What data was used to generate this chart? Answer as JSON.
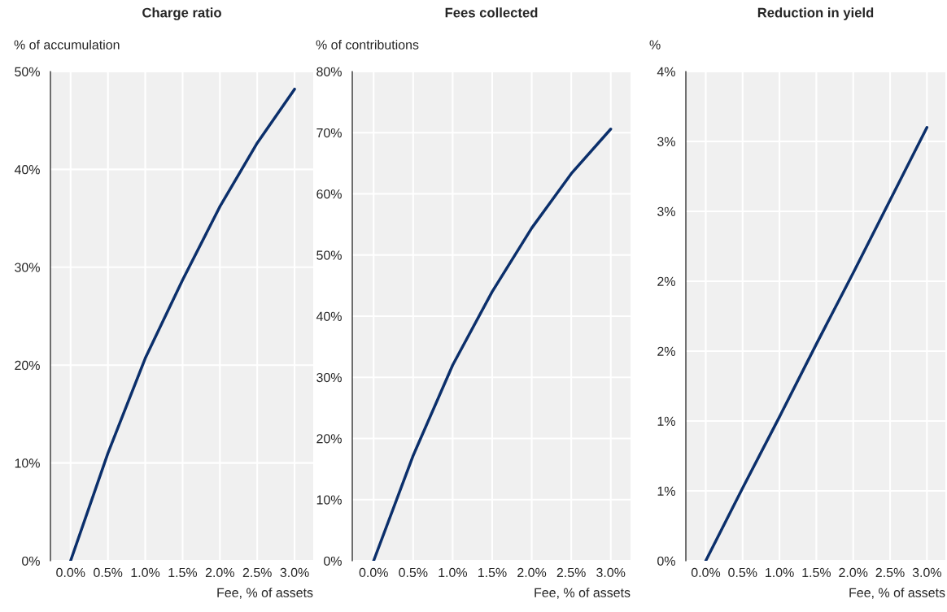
{
  "chart_data": [
    {
      "type": "line",
      "title": "Charge ratio",
      "ylabel": "% of accumulation",
      "xlabel": "Fee, % of assets",
      "x": [
        0,
        0.5,
        1.0,
        1.5,
        2.0,
        2.5,
        3.0
      ],
      "series": [
        {
          "color": "#0b2f6b",
          "values": [
            0,
            11.0,
            20.7,
            28.7,
            36.2,
            42.7,
            48.2
          ]
        }
      ],
      "xlim": [
        -0.27,
        3.25
      ],
      "xticks": [
        {
          "value": 0,
          "label": "0.0%"
        },
        {
          "value": 0.5,
          "label": "0.5%"
        },
        {
          "value": 1.0,
          "label": "1.0%"
        },
        {
          "value": 1.5,
          "label": "1.5%"
        },
        {
          "value": 2.0,
          "label": "2.0%"
        },
        {
          "value": 2.5,
          "label": "2.5%"
        },
        {
          "value": 3.0,
          "label": "3.0%"
        }
      ],
      "ylim": [
        0,
        50
      ],
      "yticks": [
        {
          "value": 0,
          "label": "0%"
        },
        {
          "value": 10,
          "label": "10%"
        },
        {
          "value": 20,
          "label": "20%"
        },
        {
          "value": 30,
          "label": "30%"
        },
        {
          "value": 40,
          "label": "40%"
        },
        {
          "value": 50,
          "label": "50%"
        }
      ],
      "grid": true,
      "line_style": "solid",
      "marker": "none"
    },
    {
      "type": "line",
      "title": "Fees collected",
      "ylabel": "% of contributions",
      "xlabel": "Fee, % of assets",
      "x": [
        0,
        0.5,
        1.0,
        1.5,
        2.0,
        2.5,
        3.0
      ],
      "series": [
        {
          "color": "#0b2f6b",
          "values": [
            0,
            17.2,
            32.0,
            44.0,
            54.4,
            63.3,
            70.6
          ]
        }
      ],
      "xlim": [
        -0.27,
        3.25
      ],
      "xticks": [
        {
          "value": 0,
          "label": "0.0%"
        },
        {
          "value": 0.5,
          "label": "0.5%"
        },
        {
          "value": 1.0,
          "label": "1.0%"
        },
        {
          "value": 1.5,
          "label": "1.5%"
        },
        {
          "value": 2.0,
          "label": "2.0%"
        },
        {
          "value": 2.5,
          "label": "2.5%"
        },
        {
          "value": 3.0,
          "label": "3.0%"
        }
      ],
      "ylim": [
        0,
        80
      ],
      "yticks": [
        {
          "value": 0,
          "label": "0%"
        },
        {
          "value": 10,
          "label": "10%"
        },
        {
          "value": 20,
          "label": "20%"
        },
        {
          "value": 30,
          "label": "30%"
        },
        {
          "value": 40,
          "label": "40%"
        },
        {
          "value": 50,
          "label": "50%"
        },
        {
          "value": 60,
          "label": "60%"
        },
        {
          "value": 70,
          "label": "70%"
        },
        {
          "value": 80,
          "label": "80%"
        }
      ],
      "grid": true,
      "line_style": "solid",
      "marker": "none"
    },
    {
      "type": "line",
      "title": "Reduction in yield",
      "ylabel": "%",
      "xlabel": "Fee, % of assets",
      "x": [
        0,
        0.5,
        1.0,
        1.5,
        2.0,
        2.5,
        3.0
      ],
      "series": [
        {
          "color": "#0b2f6b",
          "values": [
            0,
            0.52,
            1.03,
            1.55,
            2.06,
            2.58,
            3.1
          ]
        }
      ],
      "xlim": [
        -0.27,
        3.25
      ],
      "xticks": [
        {
          "value": 0,
          "label": "0.0%"
        },
        {
          "value": 0.5,
          "label": "0.5%"
        },
        {
          "value": 1.0,
          "label": "1.0%"
        },
        {
          "value": 1.5,
          "label": "1.5%"
        },
        {
          "value": 2.0,
          "label": "2.0%"
        },
        {
          "value": 2.5,
          "label": "2.5%"
        },
        {
          "value": 3.0,
          "label": "3.0%"
        }
      ],
      "ylim": [
        0,
        3.5
      ],
      "yticks": [
        {
          "value": 0,
          "label": "0%"
        },
        {
          "value": 0.5,
          "label": "1%"
        },
        {
          "value": 1.0,
          "label": "1%"
        },
        {
          "value": 1.5,
          "label": "2%"
        },
        {
          "value": 2.0,
          "label": "2%"
        },
        {
          "value": 2.5,
          "label": "3%"
        },
        {
          "value": 3.0,
          "label": "3%"
        },
        {
          "value": 3.5,
          "label": "4%"
        }
      ],
      "grid": true,
      "line_style": "solid",
      "marker": "none"
    }
  ]
}
